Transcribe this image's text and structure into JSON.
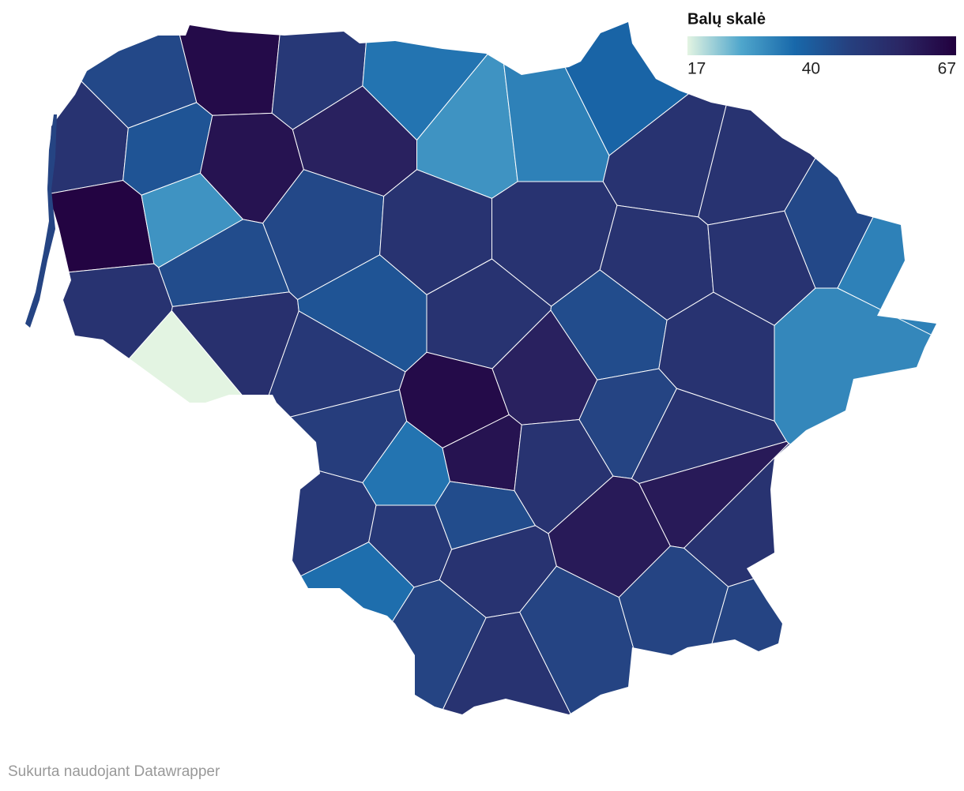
{
  "map": {
    "legend": {
      "title": "Balų skalė",
      "ticks": [
        17,
        40,
        67
      ],
      "colors": [
        "#e3f4e2",
        "#4fa6cc",
        "#1868aa",
        "#26407f",
        "#2a2563",
        "#22003e"
      ]
    },
    "values": [
      64,
      50,
      45,
      35,
      30,
      33,
      38,
      52,
      42,
      62,
      58,
      66,
      30,
      45,
      52,
      52,
      52,
      52,
      52,
      52,
      45,
      33,
      52,
      44,
      53,
      17,
      42,
      50,
      52,
      44,
      52,
      32,
      64,
      58,
      46,
      48,
      35,
      62,
      52,
      52,
      60,
      52,
      50,
      50,
      44,
      60,
      36,
      52,
      46,
      52,
      46,
      46,
      46,
      46
    ],
    "footer": "Sukurta naudojant Datawrapper"
  }
}
